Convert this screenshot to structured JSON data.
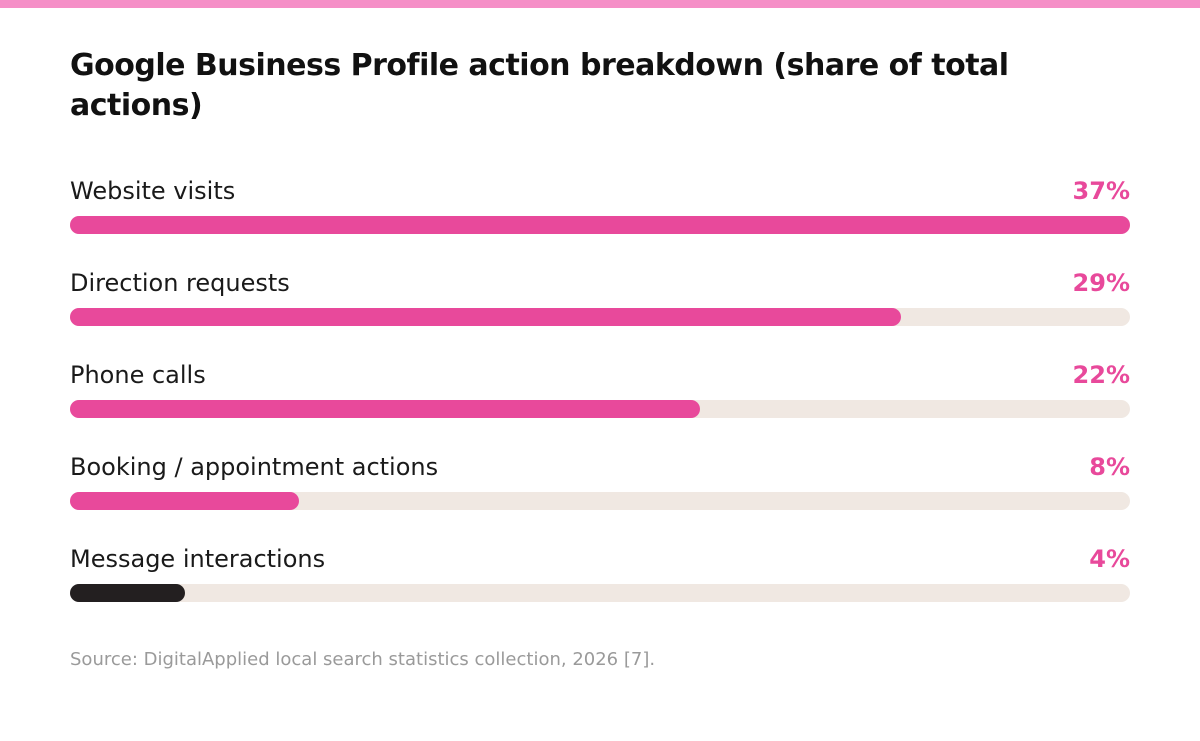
{
  "colors": {
    "accent": "#e8499b",
    "accent_light": "#f58fc7",
    "dark": "#231f20",
    "track": "#f0e8e2"
  },
  "chart_data": {
    "type": "bar",
    "orientation": "horizontal",
    "title": "Google Business Profile action breakdown (share of total actions)",
    "unit": "%",
    "categories": [
      "Website visits",
      "Direction requests",
      "Phone calls",
      "Booking / appointment actions",
      "Message interactions"
    ],
    "values": [
      37,
      29,
      22,
      8,
      4
    ],
    "value_labels": [
      "37%",
      "29%",
      "22%",
      "8%",
      "4%"
    ],
    "bar_colors": [
      "#e8499b",
      "#e8499b",
      "#e8499b",
      "#e8499b",
      "#231f20"
    ],
    "xlim": [
      0,
      37
    ],
    "grid": false,
    "legend": "none"
  },
  "source": "Source: DigitalApplied local search statistics collection, 2026 [7]."
}
